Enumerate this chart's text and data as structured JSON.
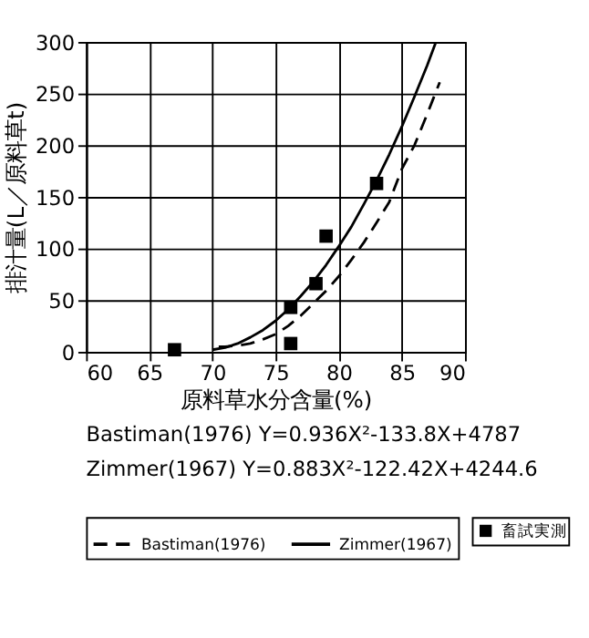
{
  "chart_data": {
    "type": "line",
    "xlabel": "原料草水分含量(%)",
    "ylabel": "排汁量(L／原料草t)",
    "xlim": [
      60,
      90
    ],
    "xticks": [
      60,
      65,
      70,
      75,
      80,
      85,
      90
    ],
    "ylim": [
      0,
      300
    ],
    "yticks": [
      0,
      50,
      100,
      150,
      200,
      250,
      300
    ],
    "grid": true,
    "legend": "bottom",
    "series": [
      {
        "name": "Bastiman(1976)",
        "color": "#000000",
        "line_style": "dashed",
        "marker": "none",
        "x": [
          70.5,
          71,
          72,
          73,
          74,
          75,
          76,
          77,
          78,
          79,
          80,
          81,
          82,
          83,
          84,
          85,
          86,
          87,
          88
        ],
        "values": [
          5,
          5,
          6,
          8,
          12,
          17,
          25,
          35,
          47,
          59,
          73,
          89,
          106,
          125,
          145,
          177,
          200,
          230,
          261
        ]
      },
      {
        "name": "Zimmer(1967)",
        "color": "#000000",
        "line_style": "solid",
        "marker": "none",
        "x": [
          70,
          71,
          72,
          73,
          74,
          75,
          76,
          77,
          78,
          79,
          80,
          81,
          82,
          83,
          84,
          85,
          86,
          87,
          87.7
        ],
        "values": [
          2,
          4,
          8,
          14,
          21,
          30,
          41,
          54,
          68,
          84,
          102,
          121,
          143,
          166,
          191,
          218,
          247,
          277,
          300
        ]
      },
      {
        "name": "畜試実測",
        "type": "scatter",
        "color": "#000000",
        "marker": "square",
        "x": [
          67,
          76.2,
          76.2,
          78.2,
          79,
          83
        ],
        "values": [
          2,
          43,
          8,
          66,
          112,
          163
        ]
      }
    ],
    "annotations": [
      "Bastiman(1976)  Y=0.936X²-133.8X+4787",
      "Zimmer(1967)    Y=0.883X²-122.42X+4244.6"
    ]
  }
}
